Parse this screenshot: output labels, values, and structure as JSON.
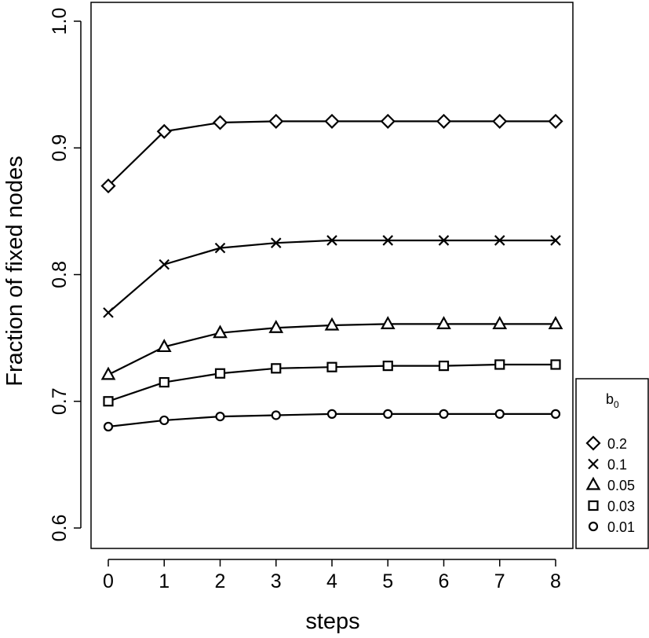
{
  "chart_data": {
    "type": "line",
    "xlabel": "steps",
    "ylabel": "Fraction of fixed nodes",
    "xlim": [
      0,
      8
    ],
    "ylim": [
      0.6,
      1.0
    ],
    "x": [
      0,
      1,
      2,
      3,
      4,
      5,
      6,
      7,
      8
    ],
    "xticks": [
      "0",
      "1",
      "2",
      "3",
      "4",
      "5",
      "6",
      "7",
      "8"
    ],
    "yticks": [
      "0.6",
      "0.7",
      "0.8",
      "0.9",
      "1.0"
    ],
    "grid": false,
    "legend": {
      "title": "b",
      "title_subscript": "0",
      "position": "right",
      "entries": [
        "0.2",
        "0.1",
        "0.05",
        "0.03",
        "0.01"
      ]
    },
    "series": [
      {
        "name": "0.2",
        "marker": "diamond",
        "values": [
          0.87,
          0.913,
          0.92,
          0.921,
          0.921,
          0.921,
          0.921,
          0.921,
          0.921
        ]
      },
      {
        "name": "0.1",
        "marker": "cross",
        "values": [
          0.77,
          0.808,
          0.821,
          0.825,
          0.827,
          0.827,
          0.827,
          0.827,
          0.827
        ]
      },
      {
        "name": "0.05",
        "marker": "triangle",
        "values": [
          0.721,
          0.743,
          0.754,
          0.758,
          0.76,
          0.761,
          0.761,
          0.761,
          0.761
        ]
      },
      {
        "name": "0.03",
        "marker": "square",
        "values": [
          0.7,
          0.715,
          0.722,
          0.726,
          0.727,
          0.728,
          0.728,
          0.729,
          0.729
        ]
      },
      {
        "name": "0.01",
        "marker": "circle",
        "values": [
          0.68,
          0.685,
          0.688,
          0.689,
          0.69,
          0.69,
          0.69,
          0.69,
          0.69
        ]
      }
    ]
  }
}
